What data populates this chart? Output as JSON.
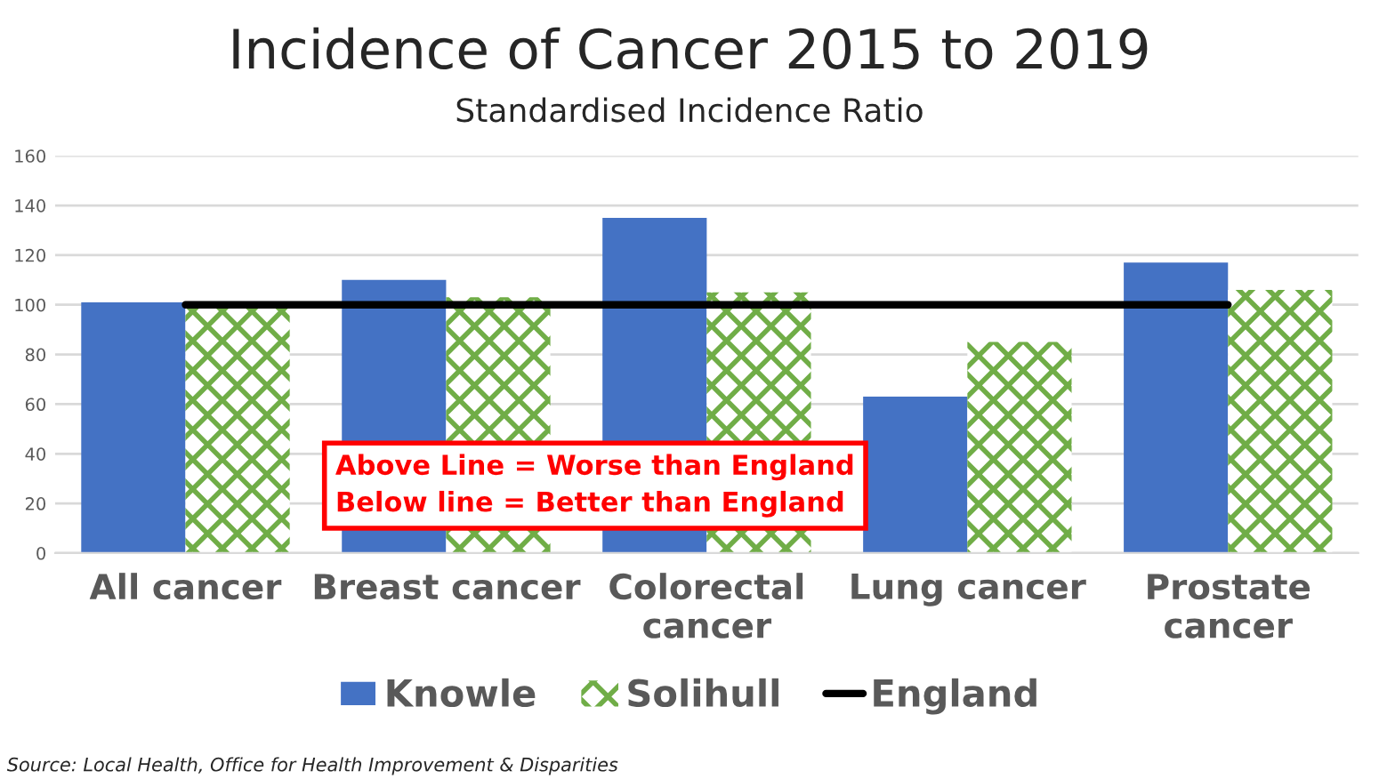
{
  "chart_data": {
    "type": "bar",
    "title": "Incidence of Cancer 2015 to 2019",
    "subtitle": "Standardised Incidence Ratio",
    "categories": [
      "All cancer",
      "Breast cancer",
      "Colorectal\ncancer",
      "Lung cancer",
      "Prostate\ncancer"
    ],
    "series": [
      {
        "name": "Knowle",
        "color": "#4472c4",
        "values": [
          101,
          110,
          135,
          63,
          117
        ]
      },
      {
        "name": "Solihull",
        "color": "#70ad47",
        "values": [
          99,
          103,
          105,
          85,
          106
        ]
      },
      {
        "name": "England",
        "type": "line",
        "color": "#000000",
        "values": [
          100,
          100,
          100,
          100,
          100
        ]
      }
    ],
    "ylim": [
      0,
      160
    ],
    "yticks": [
      0,
      20,
      40,
      60,
      80,
      100,
      120,
      140,
      160
    ],
    "grid": "y",
    "legend": "bottom",
    "marker": "none",
    "annotations": [
      "Above Line = Worse than England\nBelow line = Better than England",
      "Source: Local Health, Office for Health Improvement & Disparities"
    ]
  }
}
